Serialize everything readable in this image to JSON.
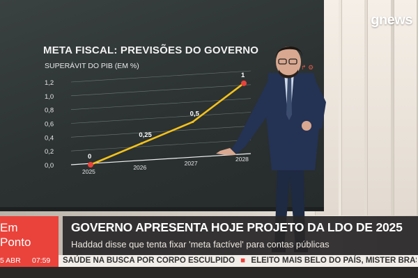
{
  "broadcast": {
    "logo": "gnews"
  },
  "screen": {
    "chart_title": "META FISCAL: PREVISÕES DO GOVERNO",
    "chart_subtitle": "SUPERÁVIT DO PIB (EM %)"
  },
  "chart_data": {
    "type": "line",
    "title": "META FISCAL: PREVISÕES DO GOVERNO",
    "ylabel": "SUPERÁVIT DO PIB (EM %)",
    "x": [
      "2025",
      "2026",
      "2027",
      "2028"
    ],
    "y_ticks": [
      "0,0",
      "0,2",
      "0,4",
      "0,6",
      "0,8",
      "1,0",
      "1,2"
    ],
    "ylim": [
      0,
      1.2
    ],
    "grid": true,
    "series": [
      {
        "values": [
          0,
          0.25,
          0.5,
          1
        ],
        "labels": [
          "0",
          "0,25",
          "0,5",
          "1"
        ],
        "color": "#f4c21a"
      }
    ],
    "marker_color": "#e9433b"
  },
  "lower_third": {
    "program_line1": "Em",
    "program_line2": "Ponto",
    "headline": "GOVERNO APRESENTA HOJE PROJETO DA LDO DE 2025",
    "subheadline": "Haddad disse que tenta fixar 'meta factível' para contas públicas",
    "date": "5 ABR",
    "time": "07:59",
    "ticker_items": [
      "SAÚDE NA BUSCA POR CORPO ESCULPIDO",
      "ELEITO MAIS BELO DO PAÍS, MISTER BRASIL"
    ]
  },
  "colors": {
    "accent": "#e9433b",
    "line": "#f4c21a",
    "screen_bg": "#2f3535"
  }
}
